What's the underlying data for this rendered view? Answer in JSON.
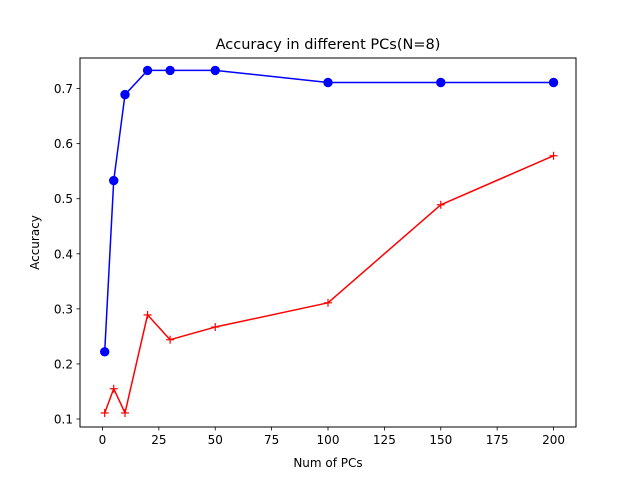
{
  "chart_data": {
    "type": "line",
    "title": "Accuracy in different PCs(N=8)",
    "xlabel": "Num of PCs",
    "ylabel": "Accuracy",
    "xlim": [
      -9.95,
      209.95
    ],
    "ylim": [
      0.0855,
      0.7555
    ],
    "grid": false,
    "xticks": [
      0,
      25,
      50,
      75,
      100,
      125,
      150,
      175,
      200
    ],
    "xtick_labels": [
      "0",
      "25",
      "50",
      "75",
      "100",
      "125",
      "150",
      "175",
      "200"
    ],
    "yticks": [
      0.1,
      0.2,
      0.3,
      0.4,
      0.5,
      0.6,
      0.7
    ],
    "ytick_labels": [
      "0.1",
      "0.2",
      "0.3",
      "0.4",
      "0.5",
      "0.6",
      "0.7"
    ],
    "x": [
      1,
      5,
      10,
      20,
      30,
      50,
      100,
      150,
      200
    ],
    "series": [
      {
        "name": "series-blue",
        "color": "#0000ff",
        "marker": "circle",
        "values": [
          0.222,
          0.533,
          0.689,
          0.733,
          0.733,
          0.733,
          0.711,
          0.711,
          0.711
        ]
      },
      {
        "name": "series-red",
        "color": "#ff0000",
        "marker": "plus",
        "values": [
          0.111,
          0.155,
          0.111,
          0.289,
          0.244,
          0.267,
          0.311,
          0.489,
          0.578
        ]
      }
    ]
  }
}
